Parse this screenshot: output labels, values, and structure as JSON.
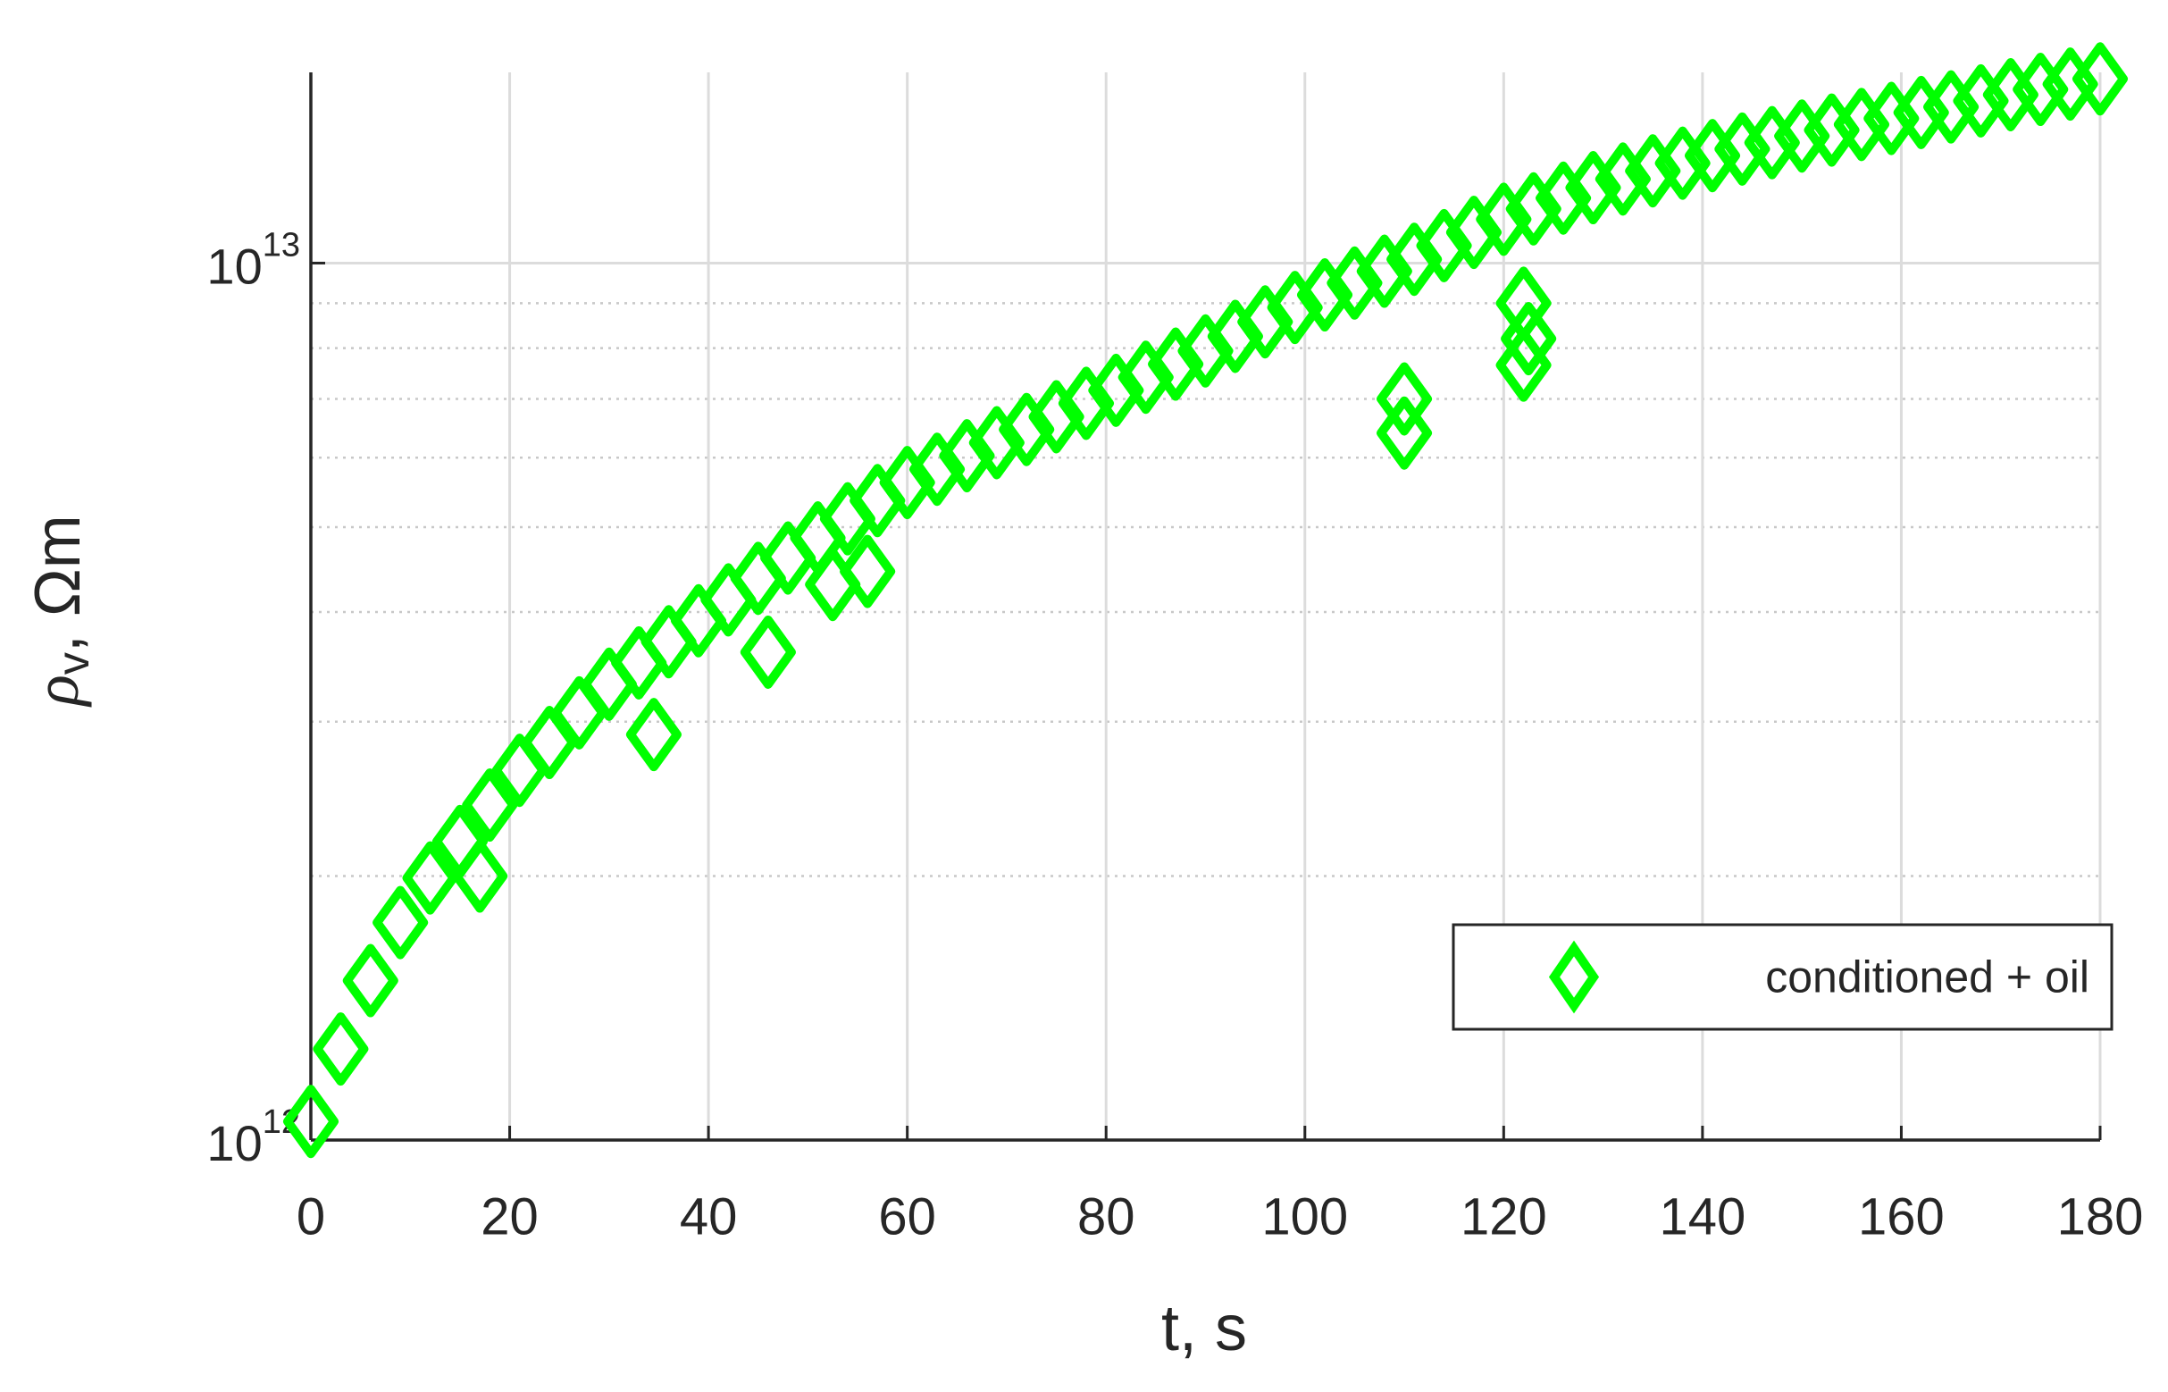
{
  "chart_data": {
    "type": "scatter",
    "xlabel": "t, s",
    "ylabel": {
      "symbol": "ρ",
      "subscript": "v",
      "unit": ", Ωm"
    },
    "xlim": [
      0,
      180
    ],
    "xticks": [
      0,
      20,
      40,
      60,
      80,
      100,
      120,
      140,
      160,
      180
    ],
    "ylim": [
      1000000000000.0,
      16500000000000.0
    ],
    "log_y": true,
    "yticks": [
      {
        "value": 1000000000000.0,
        "label": "10^12"
      },
      {
        "value": 10000000000000.0,
        "label": "10^13"
      }
    ],
    "minor_yticks": [
      2000000000000.0,
      3000000000000.0,
      4000000000000.0,
      5000000000000.0,
      6000000000000.0,
      7000000000000.0,
      8000000000000.0,
      9000000000000.0
    ],
    "grid": true,
    "legend_position": "southeast",
    "series": [
      {
        "name": "conditioned + oil",
        "color": "#00ff00",
        "marker": "diamond",
        "x": [
          0,
          3,
          6,
          9,
          12,
          15,
          18,
          21,
          24,
          27,
          30,
          33,
          36,
          39,
          42,
          45,
          48,
          51,
          54,
          57,
          60,
          63,
          66,
          69,
          72,
          75,
          78,
          81,
          84,
          87,
          90,
          93,
          96,
          99,
          102,
          105,
          108,
          111,
          114,
          117,
          120,
          123,
          126,
          129,
          132,
          135,
          138,
          141,
          144,
          147,
          150,
          153,
          156,
          159,
          162,
          165,
          168,
          171,
          174,
          177,
          180,
          17,
          34.5,
          46,
          52.5,
          56,
          110,
          110,
          122,
          122.5,
          122
        ],
        "values": [
          1050000000000.0,
          1270000000000.0,
          1520000000000.0,
          1770000000000.0,
          1990000000000.0,
          2190000000000.0,
          2410000000000.0,
          2640000000000.0,
          2840000000000.0,
          3070000000000.0,
          3310000000000.0,
          3500000000000.0,
          3700000000000.0,
          3910000000000.0,
          4130000000000.0,
          4370000000000.0,
          4610000000000.0,
          4860000000000.0,
          5110000000000.0,
          5360000000000.0,
          5620000000000.0,
          5820000000000.0,
          6030000000000.0,
          6240000000000.0,
          6460000000000.0,
          6680000000000.0,
          6920000000000.0,
          7160000000000.0,
          7410000000000.0,
          7670000000000.0,
          7940000000000.0,
          8250000000000.0,
          8570000000000.0,
          8900000000000.0,
          9200000000000.0,
          9490000000000.0,
          9790000000000.0,
          10100000000000.0,
          10470000000000.0,
          10840000000000.0,
          11220000000000.0,
          11530000000000.0,
          11860000000000.0,
          12190000000000.0,
          12470000000000.0,
          12740000000000.0,
          13000000000000.0,
          13260000000000.0,
          13490000000000.0,
          13720000000000.0,
          13960000000000.0,
          14180000000000.0,
          14390000000000.0,
          14620000000000.0,
          14850000000000.0,
          15070000000000.0,
          15310000000000.0,
          15560000000000.0,
          15780000000000.0,
          16000000000000.0,
          16220000000000.0,
          2000000000000.0,
          2900000000000.0,
          3600000000000.0,
          4300000000000.0,
          4450000000000.0,
          6400000000000.0,
          7000000000000.0,
          7650000000000.0,
          8200000000000.0,
          9000000000000.0
        ]
      }
    ]
  }
}
